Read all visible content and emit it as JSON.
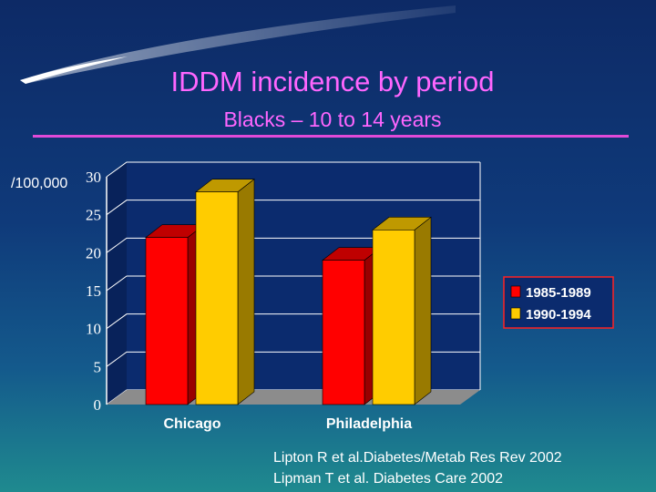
{
  "colors": {
    "title": "#ff66ff",
    "series_1985": "#ff0000",
    "series_1990": "#ffcc00",
    "plot_bg": "#0b2b6e",
    "floor": "#8c8c8c"
  },
  "slide": {
    "title": "IDDM incidence by period",
    "subtitle": "Blacks – 10 to 14 years",
    "unit_label": "/100,000",
    "citations": [
      "Lipton R et al.Diabetes/Metab Res Rev 2002",
      "Lipman T et al. Diabetes Care 2002"
    ]
  },
  "chart_data": {
    "type": "bar",
    "categories": [
      "Chicago",
      "Philadelphia"
    ],
    "series": [
      {
        "name": "1985-1989",
        "values": [
          22,
          19
        ]
      },
      {
        "name": "1990-1994",
        "values": [
          28,
          23
        ]
      }
    ],
    "ylim": [
      0,
      30
    ],
    "yticks": [
      "0",
      "5",
      "10",
      "15",
      "20",
      "25",
      "30"
    ],
    "ylabel": "/100,000",
    "grid": true,
    "legend": "right",
    "three_d": true
  }
}
